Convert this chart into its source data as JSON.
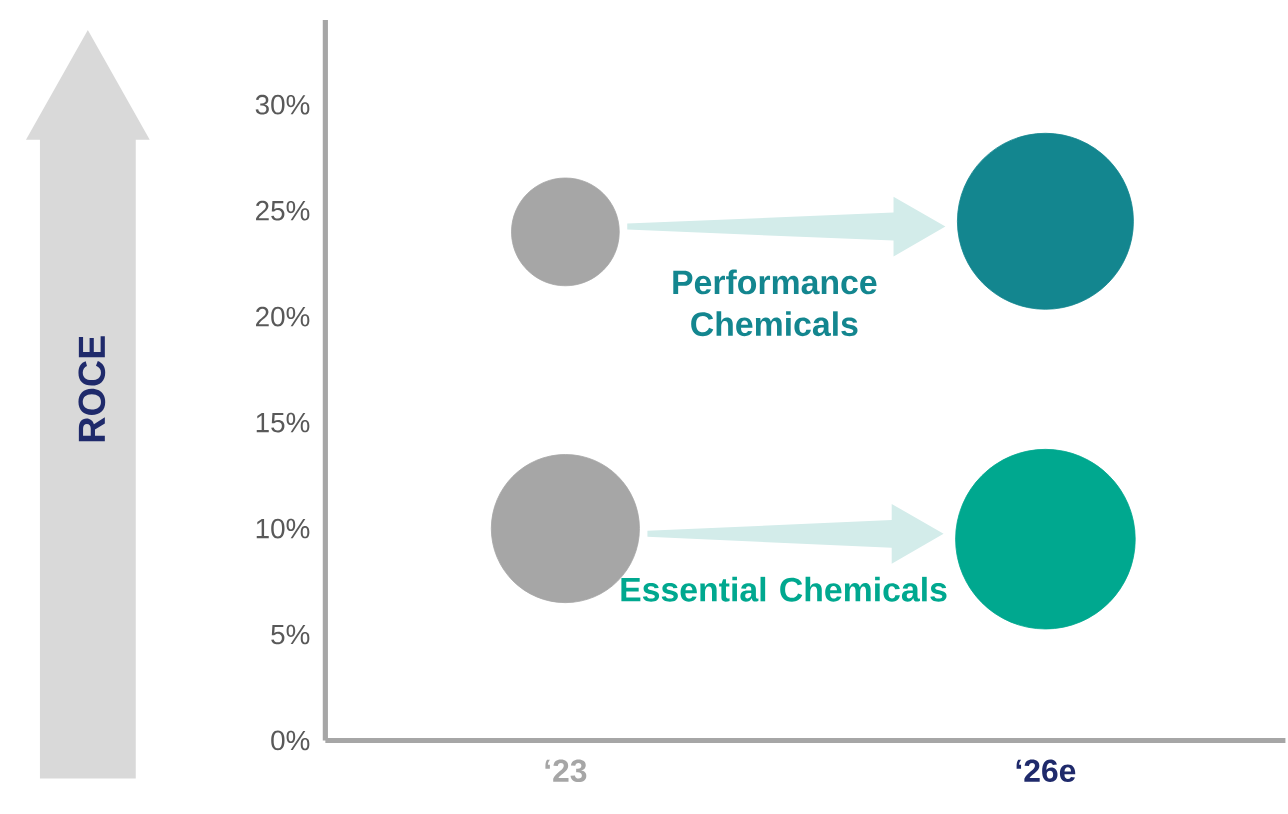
{
  "chart_data": {
    "type": "bubble",
    "ylabel": "ROCE",
    "categories": [
      "‘23",
      "‘26e"
    ],
    "series": [
      {
        "name": "Performance Chemicals",
        "colors": [
          "#a6a6a6",
          "#13868f"
        ],
        "values": [
          24,
          24.5
        ],
        "sizes": [
          0.36,
          0.96
        ]
      },
      {
        "name": "Essential Chemicals",
        "colors": [
          "#a6a6a6",
          "#00a88f"
        ],
        "values": [
          10,
          9.5
        ],
        "sizes": [
          0.68,
          1
        ]
      }
    ],
    "ylim": [
      0,
      34
    ],
    "yticks": [
      {
        "value": 0,
        "label": "0%"
      },
      {
        "value": 5,
        "label": "5%"
      },
      {
        "value": 10,
        "label": "10%"
      },
      {
        "value": 15,
        "label": "15%"
      },
      {
        "value": 20,
        "label": "20%"
      },
      {
        "value": 25,
        "label": "25%"
      },
      {
        "value": 30,
        "label": "30%"
      }
    ],
    "grid": false,
    "legend": false
  }
}
